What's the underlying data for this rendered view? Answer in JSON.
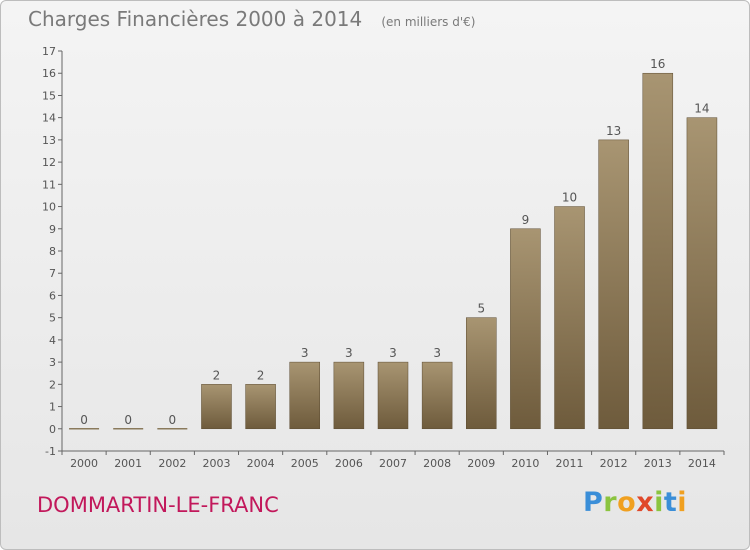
{
  "header": {
    "title": "Charges Financières 2000 à 2014",
    "subtitle": "(en milliers d'€)"
  },
  "footer": {
    "commune": "DOMMARTIN-LE-FRANC",
    "brand": "Proxiti"
  },
  "colors": {
    "bar_top": "#a89572",
    "bar_bottom": "#6e5b3c",
    "commune_text": "#c2185b",
    "title_text": "#7a7a7a"
  },
  "chart_data": {
    "type": "bar",
    "title": "Charges Financières 2000 à 2014",
    "subtitle": "(en milliers d'€)",
    "categories": [
      "2000",
      "2001",
      "2002",
      "2003",
      "2004",
      "2005",
      "2006",
      "2007",
      "2008",
      "2009",
      "2010",
      "2011",
      "2012",
      "2013",
      "2014"
    ],
    "values": [
      0,
      0,
      0,
      2,
      2,
      3,
      3,
      3,
      3,
      5,
      9,
      10,
      13,
      16,
      14
    ],
    "value_labels": [
      "0",
      "0",
      "0",
      "2",
      "2",
      "3",
      "3",
      "3",
      "3",
      "5",
      "9",
      "10",
      "13",
      "16",
      "14"
    ],
    "ylim": [
      -1,
      17
    ],
    "yticks": [
      -1,
      0,
      1,
      2,
      3,
      4,
      5,
      6,
      7,
      8,
      9,
      10,
      11,
      12,
      13,
      14,
      15,
      16,
      17
    ],
    "ytick_labels": [
      "-1",
      "0",
      "1",
      "2",
      "3",
      "4",
      "5",
      "6",
      "7",
      "8",
      "9",
      "10",
      "11",
      "12",
      "13",
      "14",
      "15",
      "16",
      "17"
    ],
    "grid": false,
    "legend": "none",
    "xlabel": "",
    "ylabel": ""
  }
}
